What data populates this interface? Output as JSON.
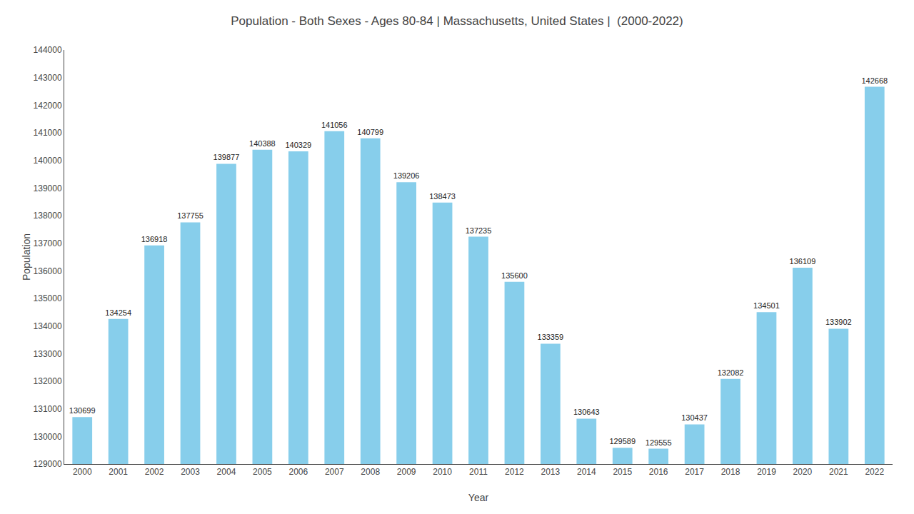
{
  "chart_data": {
    "type": "bar",
    "title": "Population - Both Sexes - Ages 80-84 | Massachusetts, United States |  (2000-2022)",
    "xlabel": "Year",
    "ylabel": "Population",
    "categories": [
      "2000",
      "2001",
      "2002",
      "2003",
      "2004",
      "2005",
      "2006",
      "2007",
      "2008",
      "2009",
      "2010",
      "2011",
      "2012",
      "2013",
      "2014",
      "2015",
      "2016",
      "2017",
      "2018",
      "2019",
      "2020",
      "2021",
      "2022"
    ],
    "values": [
      130699,
      134254,
      136918,
      137755,
      139877,
      140388,
      140329,
      141056,
      140799,
      139206,
      138473,
      137235,
      135600,
      133359,
      130643,
      129589,
      129555,
      130437,
      132082,
      134501,
      136109,
      133902,
      142668
    ],
    "color": "#87CEEB",
    "ylim": [
      129000,
      144000
    ],
    "yticks": [
      129000,
      130000,
      131000,
      132000,
      133000,
      134000,
      135000,
      136000,
      137000,
      138000,
      139000,
      140000,
      141000,
      142000,
      143000,
      144000
    ],
    "grid": false,
    "data_labels": true
  }
}
